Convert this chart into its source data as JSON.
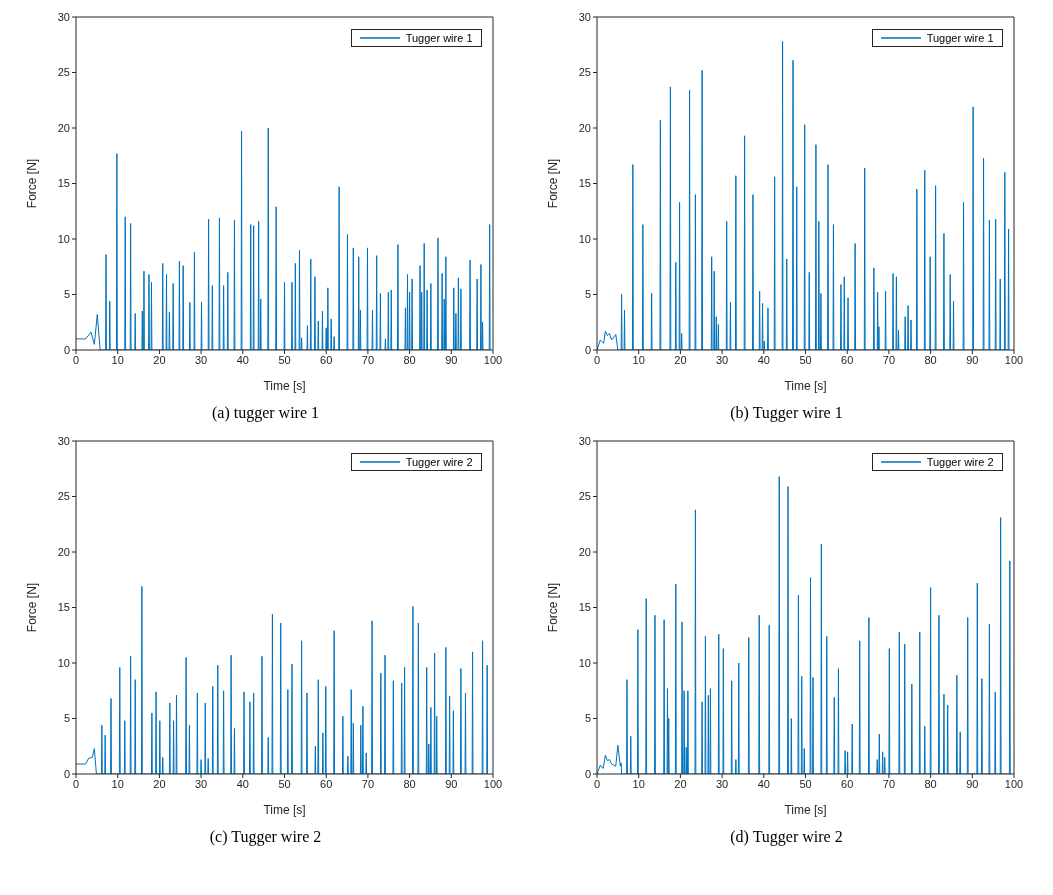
{
  "chart_data": [
    {
      "type": "line",
      "title": "(a) tugger wire 1",
      "xlabel": "Time [s]",
      "ylabel": "Force [N]",
      "xlim": [
        0,
        100
      ],
      "xticks": [
        0,
        10,
        20,
        30,
        40,
        50,
        60,
        70,
        80,
        90,
        100
      ],
      "ylim": [
        0,
        30
      ],
      "yticks": [
        0,
        5,
        10,
        15,
        20,
        25,
        30
      ],
      "legend": "top right",
      "series": [
        {
          "name": "Tugger wire 1",
          "color": "#0072bd",
          "x": [
            0,
            2.3,
            3.6,
            4.4,
            5.1,
            5.8,
            7.1,
            7.2,
            7.3,
            8,
            8.1,
            8.2,
            9.7,
            9.8,
            9.9,
            11.7,
            11.8,
            11.9,
            13,
            13.1,
            13.2,
            14.1,
            14.2,
            14.3,
            15.8,
            15.9,
            16,
            16.2,
            16.3,
            16.4,
            17.4,
            17.5,
            17.6,
            18,
            18.1,
            18.2,
            20.7,
            20.8,
            20.9,
            21.6,
            21.7,
            21.8,
            22.3,
            22.4,
            22.5,
            23.2,
            23.3,
            23.4,
            24.7,
            24.8,
            24.9,
            25.6,
            25.7,
            25.8,
            27.2,
            27.3,
            27.4,
            28.3,
            28.4,
            28.5,
            30,
            30.1,
            30.2,
            31.7,
            31.8,
            31.9,
            32.6,
            32.7,
            32.8,
            34.3,
            34.4,
            34.5,
            35.3,
            35.4,
            35.5,
            36.3,
            36.4,
            36.5,
            37.9,
            38,
            38.1,
            39.6,
            39.7,
            39.8,
            41.8,
            41.9,
            42,
            42.5,
            42.6,
            42.7,
            43.7,
            43.8,
            43.9,
            44.2,
            44.3,
            44.4,
            46,
            46.1,
            46.2,
            47.9,
            48,
            48.1,
            49.9,
            50,
            50.1,
            51.7,
            51.8,
            51.9,
            52.5,
            52.6,
            52.7,
            53.5,
            53.6,
            53.7,
            54,
            54.1,
            54.2,
            55.4,
            55.5,
            55.6,
            56.2,
            56.3,
            56.4,
            57.2,
            57.3,
            57.4,
            58,
            58.1,
            58.2,
            59,
            59.1,
            59.2,
            59.9,
            60,
            60.1,
            60.3,
            60.4,
            60.5,
            61.1,
            61.2,
            61.3,
            61.8,
            61.9,
            62,
            63,
            63.1,
            63.2,
            65,
            65.1,
            65.2,
            66.4,
            66.5,
            66.6,
            67.7,
            67.8,
            67.9,
            68.1,
            68.2,
            68.3,
            69.8,
            69.9,
            70,
            71,
            71.1,
            71.2,
            72,
            72.1,
            72.2,
            72.9,
            73,
            73.1,
            74.1,
            74.2,
            74.3,
            74.8,
            74.9,
            75,
            75.5,
            75.6,
            75.7,
            77.1,
            77.2,
            77.3,
            78.9,
            79,
            79.1,
            79.4,
            79.5,
            79.6,
            79.9,
            80,
            80.1,
            80.5,
            80.6,
            80.7,
            82.4,
            82.5,
            82.6,
            82.8,
            82.9,
            83,
            83.4,
            83.5,
            83.6,
            84.1,
            84.2,
            84.3,
            85,
            85.1,
            85.2,
            86.7,
            86.8,
            86.9,
            87.7,
            87.8,
            87.9,
            88.2,
            88.3,
            88.4,
            88.6,
            88.7,
            88.8,
            90.5,
            90.6,
            90.7,
            91,
            91.1,
            91.2,
            91.6,
            91.7,
            91.8,
            92.2,
            92.3,
            92.4,
            94.4,
            94.5,
            94.6,
            96.1,
            96.2,
            96.3,
            97,
            97.1,
            97.2,
            97.4,
            97.5,
            97.6,
            99.1,
            99.2,
            99.3
          ],
          "values": [
            1,
            1,
            1.6,
            0.5,
            3.2,
            0,
            0,
            8.6,
            0,
            0,
            4.4,
            0,
            0,
            17.7,
            0,
            0,
            12,
            0,
            0,
            11.4,
            0,
            0,
            3.3,
            0,
            0,
            3.5,
            0,
            0,
            7.1,
            0,
            0,
            6.8,
            0,
            0,
            6.1,
            0,
            0,
            7.8,
            0,
            0,
            6.8,
            0,
            0,
            3.4,
            0,
            0,
            6,
            0,
            0,
            8,
            0,
            0,
            7.6,
            0,
            0,
            4.3,
            0,
            0,
            8.8,
            0,
            0,
            4.3,
            0,
            0,
            11.8,
            0,
            0,
            5.8,
            0,
            0,
            11.9,
            0,
            0,
            5.8,
            0,
            0,
            7,
            0,
            0,
            11.7,
            0,
            0,
            19.7,
            0,
            0,
            11.3,
            0,
            0,
            11.2,
            0,
            0,
            11.6,
            0,
            0,
            4.6,
            0,
            0,
            20,
            0,
            0,
            12.9,
            0,
            0,
            6.1,
            0,
            0,
            6.1,
            0,
            0,
            7.8,
            0,
            0,
            9,
            0,
            0,
            1.1,
            0,
            0,
            2.2,
            0,
            0,
            8.2,
            0,
            0,
            6.6,
            0,
            0,
            2.6,
            0,
            0,
            3.5,
            0,
            0,
            2,
            0,
            0,
            5.6,
            0,
            0,
            2.8,
            0,
            0,
            1.2,
            0,
            0,
            14.7,
            0,
            0,
            10.4,
            0,
            0,
            9.2,
            0,
            0,
            8.4,
            0,
            0,
            3.6,
            0,
            0,
            9.2,
            0,
            0,
            3.6,
            0,
            0,
            8.5,
            0,
            0,
            5.1,
            0,
            0,
            1,
            0,
            0,
            5.2,
            0,
            0,
            5.4,
            0,
            0,
            9.5,
            0,
            0,
            3.8,
            0,
            0,
            6.8,
            0,
            0,
            5.2,
            0,
            0,
            6.4,
            0,
            0,
            7.6,
            0,
            0,
            5.2,
            0,
            0,
            9.6,
            0,
            0,
            5.4,
            0,
            0,
            6,
            0,
            0,
            10.1,
            0,
            0,
            6.9,
            0,
            0,
            4.6,
            0,
            0,
            8.4,
            0,
            0,
            5.6,
            0,
            0,
            3.3,
            0,
            0,
            6.5,
            0,
            0,
            5.5,
            0,
            0,
            8.1,
            0,
            0,
            6.4,
            0,
            0,
            7.7,
            0,
            0,
            2.5,
            0,
            0,
            11.3,
            0
          ]
        }
      ]
    },
    {
      "type": "line",
      "title": "(b) Tugger wire 1",
      "xlabel": "Time [s]",
      "ylabel": "Force [N]",
      "xlim": [
        0,
        100
      ],
      "xticks": [
        0,
        10,
        20,
        30,
        40,
        50,
        60,
        70,
        80,
        90,
        100
      ],
      "ylim": [
        0,
        30
      ],
      "yticks": [
        0,
        5,
        10,
        15,
        20,
        25,
        30
      ],
      "legend": "top right",
      "series": [
        {
          "name": "Tugger wire 1",
          "color": "#0072bd",
          "x": [
            0,
            0.8,
            1.6,
            2,
            2.5,
            3,
            3.5,
            4.5,
            5,
            5.8,
            5.9,
            6,
            6.5,
            6.6,
            6.7,
            8.5,
            8.6,
            8.7,
            10.9,
            11,
            11.1,
            13,
            13.1,
            13.2,
            15.1,
            15.2,
            15.3,
            17.5,
            17.6,
            17.7,
            18.8,
            18.9,
            19,
            19.7,
            19.8,
            19.9,
            20.2,
            20.3,
            20.4,
            22.1,
            22.2,
            22.3,
            23.5,
            23.6,
            23.7,
            25.1,
            25.2,
            25.3,
            27.4,
            27.5,
            27.6,
            28,
            28.1,
            28.2,
            28.5,
            28.6,
            28.7,
            29,
            29.1,
            29.2,
            31,
            31.1,
            31.2,
            31.9,
            32,
            32.1,
            33.2,
            33.3,
            33.4,
            35.3,
            35.4,
            35.5,
            37.3,
            37.4,
            37.5,
            38.9,
            39,
            39.1,
            39.6,
            39.7,
            39.8,
            40,
            40.1,
            40.2,
            40.9,
            41,
            41.1,
            42.5,
            42.6,
            42.7,
            44.4,
            44.5,
            44.6,
            45.4,
            45.5,
            45.6,
            46.9,
            47,
            47.1,
            47.8,
            47.9,
            48,
            49.7,
            49.8,
            49.9,
            50.8,
            50.9,
            51,
            52.4,
            52.5,
            52.6,
            53.1,
            53.2,
            53.3,
            53.6,
            53.7,
            53.8,
            55.3,
            55.4,
            55.5,
            56.6,
            56.7,
            56.8,
            58.4,
            58.5,
            58.6,
            59.2,
            59.3,
            59.4,
            60.1,
            60.2,
            60.3,
            61.8,
            61.9,
            62,
            64.1,
            64.2,
            64.3,
            66.3,
            66.4,
            66.5,
            67.2,
            67.3,
            67.4,
            67.5,
            67.6,
            67.7,
            69.1,
            69.2,
            69.3,
            70.9,
            71,
            71.1,
            71.7,
            71.8,
            71.9,
            72.2,
            72.3,
            72.4,
            73.8,
            73.9,
            74,
            74.5,
            74.6,
            74.7,
            75.2,
            75.3,
            75.4,
            76.6,
            76.7,
            76.8,
            78.5,
            78.6,
            78.7,
            79.8,
            79.9,
            80,
            81.1,
            81.2,
            81.3,
            83.1,
            83.2,
            83.3,
            84.6,
            84.7,
            84.8,
            85.4,
            85.5,
            85.6,
            87.8,
            87.9,
            88,
            90.1,
            90.2,
            90.3,
            92.6,
            92.7,
            92.8,
            94,
            94.1,
            94.2,
            95.5,
            95.6,
            95.7,
            96.6,
            96.7,
            96.8,
            97.7,
            97.8,
            97.9,
            98.6,
            98.7,
            98.8
          ],
          "values": [
            0,
            0.9,
            0.6,
            1.7,
            1.3,
            1.5,
            0.9,
            1.4,
            0,
            0,
            5,
            0,
            0,
            3.6,
            0,
            0,
            16.7,
            0,
            0,
            11.3,
            0,
            0,
            5.1,
            0,
            0,
            20.7,
            0,
            0,
            23.7,
            0,
            0,
            7.9,
            0,
            0,
            13.3,
            0,
            0,
            1.5,
            0,
            0,
            23.4,
            0,
            0,
            14,
            0,
            0,
            25.2,
            0,
            0,
            8.4,
            0,
            0,
            7.1,
            0,
            0,
            3,
            0,
            0,
            2.3,
            0,
            0,
            11.6,
            0,
            0,
            4.3,
            0,
            0,
            15.7,
            0,
            0,
            19.3,
            0,
            0,
            14,
            0,
            0,
            5.3,
            0,
            0,
            4.2,
            0,
            0,
            0.8,
            0,
            0,
            3.8,
            0,
            0,
            15.6,
            0,
            0,
            27.8,
            0,
            0,
            8.2,
            0,
            0,
            26.1,
            0,
            0,
            14.7,
            0,
            0,
            20.3,
            0,
            0,
            7,
            0,
            0,
            18.5,
            0,
            0,
            11.6,
            0,
            0,
            5.1,
            0,
            0,
            16.7,
            0,
            0,
            11.3,
            0,
            0,
            5.9,
            0,
            0,
            6.6,
            0,
            0,
            4.7,
            0,
            0,
            9.6,
            0,
            0,
            16.4,
            0,
            0,
            7.4,
            0,
            0,
            5.2,
            0,
            0,
            2.1,
            0,
            0,
            5.3,
            0,
            0,
            6.9,
            0,
            0,
            6.6,
            0,
            0,
            1.8,
            0,
            0,
            3,
            0,
            0,
            4,
            0,
            0,
            2.7,
            0,
            0,
            14.5,
            0,
            0,
            16.2,
            0,
            0,
            8.4,
            0,
            0,
            14.8,
            0,
            0,
            10.5,
            0,
            0,
            6.8,
            0,
            0,
            4.4,
            0,
            0,
            13.3,
            0,
            0,
            21.9,
            0,
            0,
            17.3,
            0,
            0,
            11.7,
            0,
            0,
            11.8,
            0,
            0,
            6.4,
            0,
            0,
            16,
            0,
            0,
            10.9,
            0
          ]
        }
      ]
    },
    {
      "type": "line",
      "title": "(c) Tugger wire 2",
      "xlabel": "Time [s]",
      "ylabel": "Force [N]",
      "xlim": [
        0,
        100
      ],
      "xticks": [
        0,
        10,
        20,
        30,
        40,
        50,
        60,
        70,
        80,
        90,
        100
      ],
      "ylim": [
        0,
        30
      ],
      "yticks": [
        0,
        5,
        10,
        15,
        20,
        25,
        30
      ],
      "legend": "top right",
      "series": [
        {
          "name": "Tugger wire 2",
          "color": "#0072bd",
          "x": [
            0,
            2.3,
            3,
            3.9,
            4.4,
            4.9,
            6.1,
            6.2,
            6.3,
            6.9,
            7,
            7.1,
            8.3,
            8.4,
            8.5,
            10.4,
            10.5,
            10.6,
            11.6,
            11.7,
            11.8,
            13,
            13.1,
            13.2,
            14.1,
            14.2,
            14.3,
            15.7,
            15.8,
            15.9,
            18.1,
            18.2,
            18.3,
            19.1,
            19.2,
            19.3,
            20,
            20.1,
            20.2,
            20.7,
            20.8,
            20.9,
            22.4,
            22.5,
            22.6,
            23.3,
            23.4,
            23.5,
            24,
            24.1,
            24.2,
            26.3,
            26.4,
            26.5,
            27.1,
            27.2,
            27.3,
            29,
            29.1,
            29.2,
            29.9,
            30,
            30.1,
            30.9,
            31,
            31.1,
            31.6,
            31.7,
            31.8,
            32.7,
            32.8,
            32.9,
            33.9,
            34,
            34.1,
            35.3,
            35.4,
            35.5,
            37.1,
            37.2,
            37.3,
            37.9,
            38,
            38.1,
            40.2,
            40.3,
            40.4,
            41.6,
            41.7,
            41.8,
            42.5,
            42.6,
            42.7,
            44.5,
            44.6,
            44.7,
            46,
            46.1,
            46.2,
            47,
            47.1,
            47.2,
            49,
            49.1,
            49.2,
            50.7,
            50.8,
            50.9,
            51.7,
            51.8,
            51.9,
            54,
            54.1,
            54.2,
            55.3,
            55.4,
            55.5,
            57.3,
            57.4,
            57.5,
            58,
            58.1,
            58.2,
            59.1,
            59.2,
            59.3,
            59.8,
            59.9,
            60,
            61.8,
            61.9,
            62,
            63.9,
            64,
            64.1,
            65.1,
            65.2,
            65.3,
            65.9,
            66,
            66.1,
            66.4,
            66.5,
            66.6,
            68.2,
            68.3,
            68.4,
            68.7,
            68.8,
            68.9,
            69.5,
            69.6,
            69.7,
            70.9,
            71,
            71.1,
            73,
            73.1,
            73.2,
            74,
            74.1,
            74.2,
            76,
            76.1,
            76.2,
            78,
            78.1,
            78.2,
            78.7,
            78.8,
            78.9,
            80.7,
            80.8,
            80.9,
            82,
            82.1,
            82.2,
            84,
            84.1,
            84.2,
            84.5,
            84.6,
            84.7,
            85,
            85.1,
            85.2,
            85.9,
            86,
            86.1,
            86.4,
            86.5,
            86.6,
            88.6,
            88.7,
            88.8,
            89.5,
            89.6,
            89.7,
            90.4,
            90.5,
            90.6,
            92.2,
            92.3,
            92.4,
            93.3,
            93.4,
            93.5,
            95,
            95.1,
            95.2,
            97.4,
            97.5,
            97.6,
            98.5,
            98.6,
            98.7
          ],
          "values": [
            0.9,
            0.9,
            1.4,
            1.5,
            2.3,
            0,
            0,
            4.4,
            0,
            0,
            3.5,
            0,
            0,
            6.8,
            0,
            0,
            9.6,
            0,
            0,
            4.8,
            0,
            0,
            10.6,
            0,
            0,
            8.5,
            0,
            0,
            16.9,
            0,
            0,
            5.5,
            0,
            0,
            7.4,
            0,
            0,
            4.8,
            0,
            0,
            1.5,
            0,
            0,
            6.4,
            0,
            0,
            4.8,
            0,
            0,
            7.1,
            0,
            0,
            10.5,
            0,
            0,
            4.4,
            0,
            0,
            7.3,
            0,
            0,
            1.3,
            0,
            0,
            6.4,
            0,
            0,
            1.4,
            0,
            0,
            7.9,
            0,
            0,
            9.8,
            0,
            0,
            7.5,
            0,
            0,
            10.7,
            0,
            0,
            4.1,
            0,
            0,
            7.4,
            0,
            0,
            6.5,
            0,
            0,
            7.3,
            0,
            0,
            10.6,
            0,
            0,
            3.3,
            0,
            0,
            14.4,
            0,
            0,
            13.6,
            0,
            0,
            7.6,
            0,
            0,
            9.9,
            0,
            0,
            12,
            0,
            0,
            7.3,
            0,
            0,
            2.5,
            0,
            0,
            8.5,
            0,
            0,
            3.7,
            0,
            0,
            7.9,
            0,
            0,
            12.9,
            0,
            0,
            5.2,
            0,
            0,
            1.6,
            0,
            0,
            7.6,
            0,
            0,
            4.6,
            0,
            0,
            4.4,
            0,
            0,
            6.1,
            0,
            0,
            1.9,
            0,
            0,
            13.8,
            0,
            0,
            9.1,
            0,
            0,
            10.7,
            0,
            0,
            8.4,
            0,
            0,
            8.2,
            0,
            0,
            9.6,
            0,
            0,
            15.1,
            0,
            0,
            13.6,
            0,
            0,
            9.6,
            0,
            0,
            2.7,
            0,
            0,
            6,
            0,
            0,
            10.9,
            0,
            0,
            5.2,
            0,
            0,
            11.4,
            0,
            0,
            7,
            0,
            0,
            5.7,
            0,
            0,
            9.5,
            0,
            0,
            7.3,
            0,
            0,
            11,
            0,
            0,
            12,
            0,
            0,
            9.8,
            0
          ]
        }
      ]
    },
    {
      "type": "line",
      "title": "(d) Tugger wire 2",
      "xlabel": "Time [s]",
      "ylabel": "Force [N]",
      "xlim": [
        0,
        100
      ],
      "xticks": [
        0,
        10,
        20,
        30,
        40,
        50,
        60,
        70,
        80,
        90,
        100
      ],
      "ylim": [
        0,
        30
      ],
      "yticks": [
        0,
        5,
        10,
        15,
        20,
        25,
        30
      ],
      "legend": "top right",
      "series": [
        {
          "name": "Tugger wire 2",
          "color": "#0072bd",
          "x": [
            0,
            0.8,
            1.5,
            2,
            2.5,
            3,
            3.5,
            4.5,
            5,
            5.6,
            5.8,
            5.9,
            7.1,
            7.2,
            7.3,
            8,
            8.1,
            8.2,
            9.7,
            9.8,
            9.9,
            11.7,
            11.8,
            11.9,
            13.8,
            13.9,
            14,
            16,
            16.1,
            16.2,
            16.8,
            16.9,
            17,
            17.1,
            17.2,
            17.3,
            18.8,
            18.9,
            19,
            20.3,
            20.4,
            20.5,
            20.8,
            20.9,
            21,
            21.3,
            21.4,
            21.5,
            21.7,
            21.8,
            21.9,
            23.5,
            23.6,
            23.7,
            25.1,
            25.2,
            25.3,
            25.9,
            26,
            26.1,
            26.6,
            26.7,
            26.8,
            27.1,
            27.2,
            27.3,
            29.1,
            29.2,
            29.3,
            30.2,
            30.3,
            30.4,
            32.2,
            32.3,
            32.4,
            33.2,
            33.3,
            33.4,
            33.9,
            34,
            34.1,
            36.3,
            36.4,
            36.5,
            38.8,
            38.9,
            39,
            41.2,
            41.3,
            41.4,
            43.6,
            43.7,
            43.8,
            45.7,
            45.8,
            45.9,
            46.5,
            46.6,
            46.7,
            48.2,
            48.3,
            48.4,
            49,
            49.1,
            49.2,
            49.6,
            49.7,
            49.8,
            51.1,
            51.2,
            51.3,
            51.7,
            51.8,
            51.9,
            53.7,
            53.8,
            53.9,
            55,
            55.1,
            55.2,
            56.8,
            56.9,
            57,
            57.8,
            57.9,
            58,
            59.4,
            59.5,
            59.6,
            60,
            60.1,
            60.2,
            61.1,
            61.2,
            61.3,
            62.9,
            63,
            63.1,
            65.1,
            65.2,
            65.3,
            67.1,
            67.2,
            67.3,
            67.6,
            67.7,
            67.8,
            68.4,
            68.5,
            68.6,
            68.9,
            69,
            69.1,
            70,
            70.1,
            70.2,
            72.4,
            72.5,
            72.6,
            73.7,
            73.8,
            73.9,
            75.4,
            75.5,
            75.6,
            77.3,
            77.4,
            77.5,
            78.5,
            78.6,
            78.7,
            79.9,
            80,
            80.1,
            81.9,
            82,
            82.1,
            83.1,
            83.2,
            83.3,
            84,
            84.1,
            84.2,
            86.2,
            86.3,
            86.4,
            87,
            87.1,
            87.2,
            88.8,
            88.9,
            89,
            91.1,
            91.2,
            91.3,
            92.2,
            92.3,
            92.4,
            94,
            94.1,
            94.2,
            95.4,
            95.5,
            95.6,
            96.7,
            96.8,
            96.9,
            98.9,
            99,
            99.1
          ],
          "values": [
            0,
            0.8,
            0.5,
            1.7,
            1.2,
            1.3,
            0.9,
            0.7,
            2.6,
            0.7,
            1,
            0,
            0,
            8.5,
            0,
            0,
            3.4,
            0,
            0,
            13,
            0,
            0,
            15.8,
            0,
            0,
            14.3,
            0,
            0,
            13.9,
            0,
            0,
            7.7,
            0,
            0,
            5,
            0,
            0,
            17.1,
            0,
            0,
            13.7,
            0,
            0,
            7.5,
            0,
            0,
            2.4,
            0,
            0,
            7.5,
            0,
            0,
            23.8,
            0,
            0,
            6.5,
            0,
            0,
            12.4,
            0,
            0,
            7.1,
            0,
            0,
            7.7,
            0,
            0,
            12.6,
            0,
            0,
            11.3,
            0,
            0,
            8.4,
            0,
            0,
            1.3,
            0,
            0,
            10,
            0,
            0,
            12.3,
            0,
            0,
            14.3,
            0,
            0,
            13.4,
            0,
            0,
            26.8,
            0,
            0,
            25.9,
            0,
            0,
            5,
            0,
            0,
            16.1,
            0,
            0,
            8.8,
            0,
            0,
            2.3,
            0,
            0,
            17.7,
            0,
            0,
            8.7,
            0,
            0,
            20.7,
            0,
            0,
            12.4,
            0,
            0,
            6.9,
            0,
            0,
            9.5,
            0,
            0,
            2.1,
            0,
            0,
            2,
            0,
            0,
            4.5,
            0,
            0,
            12,
            0,
            0,
            14.1,
            0,
            0,
            1.3,
            0,
            0,
            3.6,
            0,
            0,
            2,
            0,
            0,
            1.5,
            0,
            0,
            11.3,
            0,
            0,
            12.8,
            0,
            0,
            11.7,
            0,
            0,
            8.1,
            0,
            0,
            12.8,
            0,
            0,
            4.3,
            0,
            0,
            16.8,
            0,
            0,
            14.3,
            0,
            0,
            7.2,
            0,
            0,
            6.2,
            0,
            0,
            8.9,
            0,
            0,
            3.8,
            0,
            0,
            14.1,
            0,
            0,
            17.2,
            0,
            0,
            8.6,
            0,
            0,
            13.5,
            0,
            0,
            7.4,
            0,
            0,
            23.1,
            0,
            0,
            19.2,
            0
          ]
        }
      ]
    }
  ]
}
